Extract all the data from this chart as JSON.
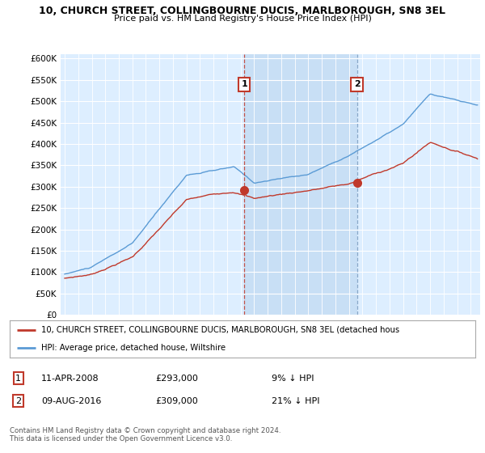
{
  "title_line1": "10, CHURCH STREET, COLLINGBOURNE DUCIS, MARLBOROUGH, SN8 3EL",
  "title_line2": "Price paid vs. HM Land Registry's House Price Index (HPI)",
  "ylabel_ticks": [
    "£0",
    "£50K",
    "£100K",
    "£150K",
    "£200K",
    "£250K",
    "£300K",
    "£350K",
    "£400K",
    "£450K",
    "£500K",
    "£550K",
    "£600K"
  ],
  "ytick_values": [
    0,
    50000,
    100000,
    150000,
    200000,
    250000,
    300000,
    350000,
    400000,
    450000,
    500000,
    550000,
    600000
  ],
  "ylim": [
    0,
    610000
  ],
  "hpi_color": "#5b9bd5",
  "sold_color": "#c0392b",
  "sale1_date": 2008.27,
  "sale1_price": 293000,
  "sale1_label": "1",
  "sale2_date": 2016.6,
  "sale2_price": 309000,
  "sale2_label": "2",
  "legend_sold": "10, CHURCH STREET, COLLINGBOURNE DUCIS, MARLBOROUGH, SN8 3EL (detached hous",
  "legend_hpi": "HPI: Average price, detached house, Wiltshire",
  "footnote": "Contains HM Land Registry data © Crown copyright and database right 2024.\nThis data is licensed under the Open Government Licence v3.0.",
  "background_color": "#ffffff",
  "plot_bg_color": "#ddeeff",
  "shade_color": "#c8dff5"
}
